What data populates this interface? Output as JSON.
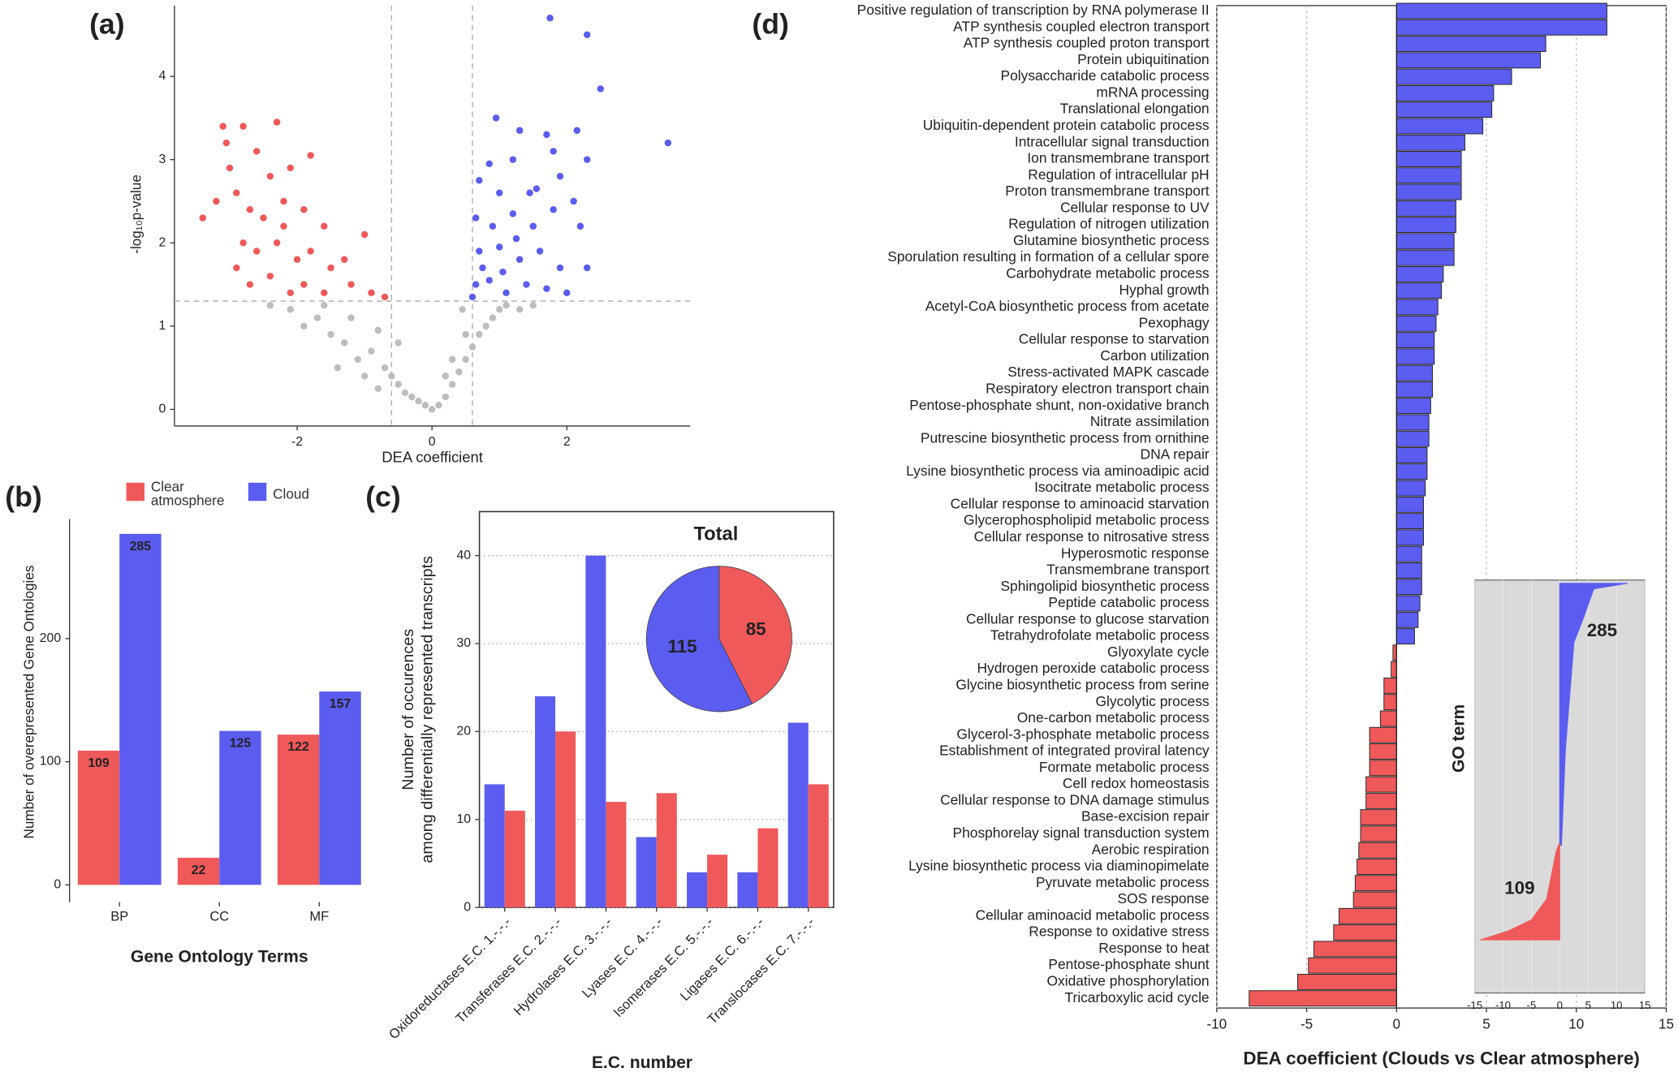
{
  "chart_data": [
    {
      "type": "scatter",
      "panel_label": "(a)",
      "xlabel": "DEA coefficient",
      "ylabel": "-log₁₀p-value",
      "xlim": [
        -3.82,
        3.83
      ],
      "ylim": [
        -0.2,
        4.85
      ],
      "xticks": [
        -2,
        0,
        2
      ],
      "yticks": [
        0,
        1,
        2,
        3,
        4
      ],
      "thresholds_x": [
        -0.6,
        0.6
      ],
      "threshold_y": 1.3,
      "series": [
        {
          "color": "#bdbdbd",
          "x": [
            -2.1,
            -1.9,
            -1.7,
            -1.5,
            -1.6,
            -1.3,
            -1.2,
            -1.1,
            -0.9,
            -0.8,
            -0.7,
            -0.6,
            -0.5,
            -0.4,
            -0.3,
            -0.2,
            -0.1,
            0,
            0.1,
            0.2,
            0.3,
            0.4,
            0.5,
            0.6,
            0.7,
            0.8,
            0.9,
            1.0,
            1.1,
            1.3,
            1.5,
            -1.0,
            -0.8,
            0.5,
            0.45,
            -0.5,
            -1.4,
            0.3,
            -2.4,
            0.2
          ],
          "y": [
            1.2,
            1.0,
            1.1,
            0.9,
            1.25,
            0.8,
            1.1,
            0.6,
            0.7,
            0.95,
            0.5,
            0.4,
            0.3,
            0.2,
            0.15,
            0.1,
            0.05,
            0,
            0.05,
            0.15,
            0.3,
            0.45,
            0.6,
            0.75,
            0.9,
            1.0,
            1.1,
            1.2,
            1.25,
            1.2,
            1.25,
            0.4,
            0.25,
            0.9,
            1.2,
            0.8,
            0.5,
            0.6,
            1.25,
            0.4
          ]
        },
        {
          "color": "#f0595a",
          "x": [
            -3.1,
            -3.05,
            -2.8,
            -2.3,
            -2.6,
            -2.4,
            -2.1,
            -1.8,
            -3.4,
            -3.2,
            -2.9,
            -2.7,
            -2.5,
            -2.2,
            -1.9,
            -1.6,
            -1.0,
            -2.8,
            -2.6,
            -2.3,
            -2.0,
            -1.8,
            -1.5,
            -1.3,
            -2.7,
            -2.4,
            -2.1,
            -1.9,
            -1.6,
            -1.2,
            -0.9,
            -0.7,
            -2.9,
            -3.0,
            -2.2
          ],
          "y": [
            3.4,
            3.2,
            3.4,
            3.45,
            3.1,
            2.8,
            2.9,
            3.05,
            2.3,
            2.5,
            2.6,
            2.4,
            2.3,
            2.5,
            2.4,
            2.2,
            2.1,
            2.0,
            1.9,
            2.0,
            1.8,
            1.9,
            1.7,
            1.8,
            1.5,
            1.6,
            1.4,
            1.5,
            1.4,
            1.5,
            1.4,
            1.35,
            1.7,
            2.9,
            2.2
          ]
        },
        {
          "color": "#5b5cf0",
          "x": [
            1.75,
            2.3,
            2.5,
            3.5,
            0.95,
            1.3,
            1.7,
            2.15,
            0.85,
            1.2,
            1.8,
            2.3,
            0.7,
            1.0,
            1.45,
            1.9,
            2.1,
            0.65,
            0.9,
            1.2,
            1.5,
            1.8,
            2.2,
            0.7,
            1.0,
            1.3,
            1.6,
            1.9,
            2.3,
            0.65,
            0.85,
            1.1,
            1.4,
            1.7,
            2.0,
            0.75,
            1.25,
            1.55,
            0.6,
            1.05
          ],
          "y": [
            4.7,
            4.5,
            3.85,
            3.2,
            3.5,
            3.35,
            3.3,
            3.35,
            2.95,
            3.0,
            3.1,
            3.0,
            2.75,
            2.6,
            2.6,
            2.8,
            2.5,
            2.3,
            2.2,
            2.35,
            2.2,
            2.4,
            2.2,
            1.9,
            1.95,
            1.8,
            1.9,
            1.7,
            1.7,
            1.5,
            1.55,
            1.4,
            1.5,
            1.45,
            1.4,
            1.7,
            2.05,
            2.65,
            1.35,
            1.65
          ]
        }
      ]
    },
    {
      "type": "bar",
      "panel_label": "(b)",
      "xlabel": "Gene Ontology Terms",
      "ylabel": "Number of overepresented Gene Ontologies",
      "categories": [
        "BP",
        "CC",
        "MF"
      ],
      "ylim": [
        -14,
        297
      ],
      "yticks": [
        0,
        100,
        200
      ],
      "bar_labels": true,
      "legend": "top",
      "series": [
        {
          "name": "Clear atmosphere",
          "color": "#f0595a",
          "values": [
            109,
            22,
            122
          ]
        },
        {
          "name": "Cloud",
          "color": "#5b5cf0",
          "values": [
            285,
            125,
            157
          ]
        }
      ]
    },
    {
      "type": "bar",
      "panel_label": "(c)",
      "xlabel": "E.C. number",
      "ylabel": [
        "Number of occurences",
        "among differentially represented transcripts"
      ],
      "categories": [
        "Oxidoreductases E.C. 1.-.-.-",
        "Transferases E.C. 2.-.-.-",
        "Hydrolases E.C. 3.-.-.-",
        "Lyases E.C. 4.-.-.-",
        "Isomerases E.C. 5.-.-.-",
        "Ligases E.C. 6.-.-.-",
        "Translocases E.C. 7.-.-.-"
      ],
      "ylim": [
        0,
        45
      ],
      "yticks": [
        0,
        10,
        20,
        30,
        40
      ],
      "grid": true,
      "series": [
        {
          "color": "#5b5cf0",
          "values": [
            14,
            24,
            40,
            8,
            4,
            4,
            21
          ]
        },
        {
          "color": "#f0595a",
          "values": [
            11,
            20,
            12,
            13,
            6,
            9,
            14
          ]
        }
      ]
    },
    {
      "type": "pie",
      "title": "Total",
      "values": [
        85,
        115
      ],
      "colors": [
        "#f0595a",
        "#5b5cf0"
      ]
    },
    {
      "type": "barh",
      "panel_label": "(d)",
      "xlabel": "DEA coefficient (Clouds vs Clear atmosphere)",
      "categories": [
        "Positive regulation of transcription by RNA polymerase II",
        "ATP synthesis coupled electron transport",
        "ATP synthesis coupled proton transport",
        "Protein ubiquitination",
        "Polysaccharide catabolic process",
        "mRNA processing",
        "Translational elongation",
        "Ubiquitin-dependent protein catabolic process",
        "Intracellular signal transduction",
        "Ion transmembrane transport",
        "Regulation of intracellular pH",
        "Proton transmembrane transport",
        "Cellular response to UV",
        "Regulation of nitrogen utilization",
        "Glutamine biosynthetic process",
        "Sporulation resulting in formation of a cellular spore",
        "Carbohydrate metabolic process",
        "Hyphal growth",
        "Acetyl-CoA biosynthetic process from acetate",
        "Pexophagy",
        "Cellular response to starvation",
        "Carbon utilization",
        "Stress-activated MAPK cascade",
        "Respiratory electron transport chain",
        "Pentose-phosphate shunt, non-oxidative branch",
        "Nitrate assimilation",
        "Putrescine biosynthetic process from ornithine",
        "DNA repair",
        "Lysine biosynthetic process via aminoadipic acid",
        "Isocitrate metabolic process",
        "Cellular response to aminoacid starvation",
        "Glycerophospholipid metabolic process",
        "Cellular response to nitrosative stress",
        "Hyperosmotic response",
        "Transmembrane transport",
        "Sphingolipid biosynthetic process",
        "Peptide catabolic process",
        "Cellular response to glucose starvation",
        "Tetrahydrofolate metabolic process",
        "Glyoxylate cycle",
        "Hydrogen peroxide catabolic process",
        "Glycine biosynthetic process from serine",
        "Glycolytic process",
        "One-carbon metabolic process",
        "Glycerol-3-phosphate metabolic process",
        "Establishment of integrated proviral latency",
        "Formate metabolic process",
        "Cell redox homeostasis",
        "Cellular response to DNA damage stimulus",
        "Base-excision repair",
        "Phosphorelay signal transduction system",
        "Aerobic respiration",
        "Lysine biosynthetic process via diaminopimelate",
        "Pyruvate metabolic process",
        "SOS response",
        "Cellular aminoacid metabolic process",
        "Response to oxidative stress",
        "Response to heat",
        "Pentose-phosphate shunt",
        "Oxidative phosphorylation",
        "Tricarboxylic acid cycle"
      ],
      "values": [
        11.7,
        11.7,
        8.3,
        8.0,
        6.4,
        5.4,
        5.3,
        4.8,
        3.8,
        3.6,
        3.6,
        3.6,
        3.3,
        3.3,
        3.2,
        3.2,
        2.6,
        2.5,
        2.3,
        2.2,
        2.1,
        2.1,
        2.0,
        2.0,
        1.9,
        1.8,
        1.8,
        1.7,
        1.7,
        1.6,
        1.5,
        1.5,
        1.5,
        1.4,
        1.4,
        1.4,
        1.3,
        1.2,
        1.0,
        -0.2,
        -0.3,
        -0.7,
        -0.7,
        -0.9,
        -1.5,
        -1.5,
        -1.5,
        -1.7,
        -1.7,
        -2.0,
        -2.0,
        -2.1,
        -2.2,
        -2.3,
        -2.4,
        -3.2,
        -3.5,
        -4.6,
        -4.9,
        -5.5,
        -8.2
      ],
      "xlim": [
        -10,
        15
      ],
      "xticks": [
        -10,
        -5,
        0,
        5,
        10,
        15
      ],
      "grid": true,
      "color_positive": "#5b5cf0",
      "color_negative": "#f0595a"
    },
    {
      "type": "area",
      "ylabel": "GO term",
      "xlim": [
        -15,
        15
      ],
      "xticks": [
        -15,
        -10,
        -5,
        0,
        5,
        10,
        15
      ],
      "ylim": [
        0,
        394
      ],
      "series": [
        {
          "color": "#5b5cf0",
          "x": [
            0.3,
            1,
            2.5,
            4,
            6,
            12
          ],
          "values": [
            106,
            212,
            329,
            353,
            388,
            394
          ]
        },
        {
          "color": "#f0595a",
          "x": [
            -14,
            -9,
            -5,
            -2.3,
            -0.6,
            0
          ],
          "values": [
            2,
            12,
            24,
            47,
            100,
            109
          ]
        }
      ],
      "annotations": [
        {
          "text": "285",
          "color": "#1f2fd0"
        },
        {
          "text": "109",
          "color": "#e8201f"
        }
      ]
    }
  ]
}
